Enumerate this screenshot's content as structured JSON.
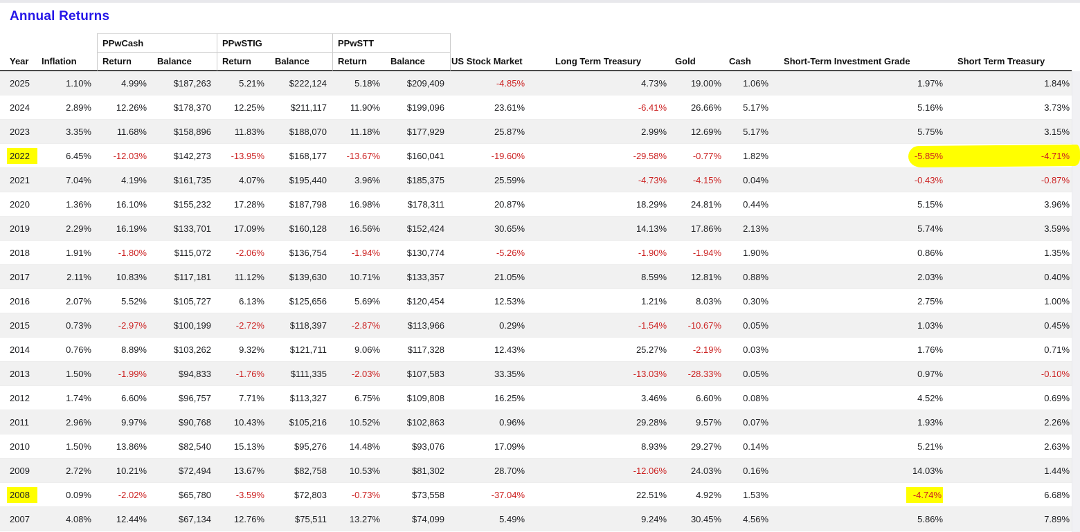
{
  "page": {
    "title": "Annual Returns"
  },
  "colors": {
    "title": "#2617e8",
    "negative": "#cc2222",
    "stripe": "#f1f1f1",
    "underline": "#4a4a4a",
    "grid_line": "#cccccc",
    "top_strip": "#e8e8ec",
    "scrollbar_track": "#f1f1f4",
    "highlighter": "#ffff00"
  },
  "table": {
    "group_headers": [
      {
        "label": "",
        "span": 2
      },
      {
        "label": "PPwCash",
        "span": 2
      },
      {
        "label": "PPwSTIG",
        "span": 2
      },
      {
        "label": "PPwSTT",
        "span": 2
      },
      {
        "label": "",
        "span": 6
      }
    ],
    "column_headers": [
      "Year",
      "Inflation",
      "Return",
      "Balance",
      "Return",
      "Balance",
      "Return",
      "Balance",
      "US Stock Market",
      "Long Term Treasury",
      "Gold",
      "Cash",
      "Short-Term Investment Grade",
      "Short Term Treasury"
    ],
    "column_keys": [
      "year",
      "inflation",
      "ppwcash_return",
      "ppwcash_balance",
      "ppwstig_return",
      "ppwstig_balance",
      "ppwstt_return",
      "ppwstt_balance",
      "us_stock_market",
      "long_term_treasury",
      "gold",
      "cash",
      "short_term_investment_grade",
      "short_term_treasury"
    ],
    "rows": [
      {
        "year": "2025",
        "inflation": "1.10%",
        "ppwcash_return": "4.99%",
        "ppwcash_balance": "$187,263",
        "ppwstig_return": "5.21%",
        "ppwstig_balance": "$222,124",
        "ppwstt_return": "5.18%",
        "ppwstt_balance": "$209,409",
        "us_stock_market": "-4.85%",
        "long_term_treasury": "4.73%",
        "gold": "19.00%",
        "cash": "1.06%",
        "short_term_investment_grade": "1.97%",
        "short_term_treasury": "1.84%"
      },
      {
        "year": "2024",
        "inflation": "2.89%",
        "ppwcash_return": "12.26%",
        "ppwcash_balance": "$178,370",
        "ppwstig_return": "12.25%",
        "ppwstig_balance": "$211,117",
        "ppwstt_return": "11.90%",
        "ppwstt_balance": "$199,096",
        "us_stock_market": "23.61%",
        "long_term_treasury": "-6.41%",
        "gold": "26.66%",
        "cash": "5.17%",
        "short_term_investment_grade": "5.16%",
        "short_term_treasury": "3.73%"
      },
      {
        "year": "2023",
        "inflation": "3.35%",
        "ppwcash_return": "11.68%",
        "ppwcash_balance": "$158,896",
        "ppwstig_return": "11.83%",
        "ppwstig_balance": "$188,070",
        "ppwstt_return": "11.18%",
        "ppwstt_balance": "$177,929",
        "us_stock_market": "25.87%",
        "long_term_treasury": "2.99%",
        "gold": "12.69%",
        "cash": "5.17%",
        "short_term_investment_grade": "5.75%",
        "short_term_treasury": "3.15%"
      },
      {
        "year": "2022",
        "inflation": "6.45%",
        "ppwcash_return": "-12.03%",
        "ppwcash_balance": "$142,273",
        "ppwstig_return": "-13.95%",
        "ppwstig_balance": "$168,177",
        "ppwstt_return": "-13.67%",
        "ppwstt_balance": "$160,041",
        "us_stock_market": "-19.60%",
        "long_term_treasury": "-29.58%",
        "gold": "-0.77%",
        "cash": "1.82%",
        "short_term_investment_grade": "-5.85%",
        "short_term_treasury": "-4.71%"
      },
      {
        "year": "2021",
        "inflation": "7.04%",
        "ppwcash_return": "4.19%",
        "ppwcash_balance": "$161,735",
        "ppwstig_return": "4.07%",
        "ppwstig_balance": "$195,440",
        "ppwstt_return": "3.96%",
        "ppwstt_balance": "$185,375",
        "us_stock_market": "25.59%",
        "long_term_treasury": "-4.73%",
        "gold": "-4.15%",
        "cash": "0.04%",
        "short_term_investment_grade": "-0.43%",
        "short_term_treasury": "-0.87%"
      },
      {
        "year": "2020",
        "inflation": "1.36%",
        "ppwcash_return": "16.10%",
        "ppwcash_balance": "$155,232",
        "ppwstig_return": "17.28%",
        "ppwstig_balance": "$187,798",
        "ppwstt_return": "16.98%",
        "ppwstt_balance": "$178,311",
        "us_stock_market": "20.87%",
        "long_term_treasury": "18.29%",
        "gold": "24.81%",
        "cash": "0.44%",
        "short_term_investment_grade": "5.15%",
        "short_term_treasury": "3.96%"
      },
      {
        "year": "2019",
        "inflation": "2.29%",
        "ppwcash_return": "16.19%",
        "ppwcash_balance": "$133,701",
        "ppwstig_return": "17.09%",
        "ppwstig_balance": "$160,128",
        "ppwstt_return": "16.56%",
        "ppwstt_balance": "$152,424",
        "us_stock_market": "30.65%",
        "long_term_treasury": "14.13%",
        "gold": "17.86%",
        "cash": "2.13%",
        "short_term_investment_grade": "5.74%",
        "short_term_treasury": "3.59%"
      },
      {
        "year": "2018",
        "inflation": "1.91%",
        "ppwcash_return": "-1.80%",
        "ppwcash_balance": "$115,072",
        "ppwstig_return": "-2.06%",
        "ppwstig_balance": "$136,754",
        "ppwstt_return": "-1.94%",
        "ppwstt_balance": "$130,774",
        "us_stock_market": "-5.26%",
        "long_term_treasury": "-1.90%",
        "gold": "-1.94%",
        "cash": "1.90%",
        "short_term_investment_grade": "0.86%",
        "short_term_treasury": "1.35%"
      },
      {
        "year": "2017",
        "inflation": "2.11%",
        "ppwcash_return": "10.83%",
        "ppwcash_balance": "$117,181",
        "ppwstig_return": "11.12%",
        "ppwstig_balance": "$139,630",
        "ppwstt_return": "10.71%",
        "ppwstt_balance": "$133,357",
        "us_stock_market": "21.05%",
        "long_term_treasury": "8.59%",
        "gold": "12.81%",
        "cash": "0.88%",
        "short_term_investment_grade": "2.03%",
        "short_term_treasury": "0.40%"
      },
      {
        "year": "2016",
        "inflation": "2.07%",
        "ppwcash_return": "5.52%",
        "ppwcash_balance": "$105,727",
        "ppwstig_return": "6.13%",
        "ppwstig_balance": "$125,656",
        "ppwstt_return": "5.69%",
        "ppwstt_balance": "$120,454",
        "us_stock_market": "12.53%",
        "long_term_treasury": "1.21%",
        "gold": "8.03%",
        "cash": "0.30%",
        "short_term_investment_grade": "2.75%",
        "short_term_treasury": "1.00%"
      },
      {
        "year": "2015",
        "inflation": "0.73%",
        "ppwcash_return": "-2.97%",
        "ppwcash_balance": "$100,199",
        "ppwstig_return": "-2.72%",
        "ppwstig_balance": "$118,397",
        "ppwstt_return": "-2.87%",
        "ppwstt_balance": "$113,966",
        "us_stock_market": "0.29%",
        "long_term_treasury": "-1.54%",
        "gold": "-10.67%",
        "cash": "0.05%",
        "short_term_investment_grade": "1.03%",
        "short_term_treasury": "0.45%"
      },
      {
        "year": "2014",
        "inflation": "0.76%",
        "ppwcash_return": "8.89%",
        "ppwcash_balance": "$103,262",
        "ppwstig_return": "9.32%",
        "ppwstig_balance": "$121,711",
        "ppwstt_return": "9.06%",
        "ppwstt_balance": "$117,328",
        "us_stock_market": "12.43%",
        "long_term_treasury": "25.27%",
        "gold": "-2.19%",
        "cash": "0.03%",
        "short_term_investment_grade": "1.76%",
        "short_term_treasury": "0.71%"
      },
      {
        "year": "2013",
        "inflation": "1.50%",
        "ppwcash_return": "-1.99%",
        "ppwcash_balance": "$94,833",
        "ppwstig_return": "-1.76%",
        "ppwstig_balance": "$111,335",
        "ppwstt_return": "-2.03%",
        "ppwstt_balance": "$107,583",
        "us_stock_market": "33.35%",
        "long_term_treasury": "-13.03%",
        "gold": "-28.33%",
        "cash": "0.05%",
        "short_term_investment_grade": "0.97%",
        "short_term_treasury": "-0.10%"
      },
      {
        "year": "2012",
        "inflation": "1.74%",
        "ppwcash_return": "6.60%",
        "ppwcash_balance": "$96,757",
        "ppwstig_return": "7.71%",
        "ppwstig_balance": "$113,327",
        "ppwstt_return": "6.75%",
        "ppwstt_balance": "$109,808",
        "us_stock_market": "16.25%",
        "long_term_treasury": "3.46%",
        "gold": "6.60%",
        "cash": "0.08%",
        "short_term_investment_grade": "4.52%",
        "short_term_treasury": "0.69%"
      },
      {
        "year": "2011",
        "inflation": "2.96%",
        "ppwcash_return": "9.97%",
        "ppwcash_balance": "$90,768",
        "ppwstig_return": "10.43%",
        "ppwstig_balance": "$105,216",
        "ppwstt_return": "10.52%",
        "ppwstt_balance": "$102,863",
        "us_stock_market": "0.96%",
        "long_term_treasury": "29.28%",
        "gold": "9.57%",
        "cash": "0.07%",
        "short_term_investment_grade": "1.93%",
        "short_term_treasury": "2.26%"
      },
      {
        "year": "2010",
        "inflation": "1.50%",
        "ppwcash_return": "13.86%",
        "ppwcash_balance": "$82,540",
        "ppwstig_return": "15.13%",
        "ppwstig_balance": "$95,276",
        "ppwstt_return": "14.48%",
        "ppwstt_balance": "$93,076",
        "us_stock_market": "17.09%",
        "long_term_treasury": "8.93%",
        "gold": "29.27%",
        "cash": "0.14%",
        "short_term_investment_grade": "5.21%",
        "short_term_treasury": "2.63%"
      },
      {
        "year": "2009",
        "inflation": "2.72%",
        "ppwcash_return": "10.21%",
        "ppwcash_balance": "$72,494",
        "ppwstig_return": "13.67%",
        "ppwstig_balance": "$82,758",
        "ppwstt_return": "10.53%",
        "ppwstt_balance": "$81,302",
        "us_stock_market": "28.70%",
        "long_term_treasury": "-12.06%",
        "gold": "24.03%",
        "cash": "0.16%",
        "short_term_investment_grade": "14.03%",
        "short_term_treasury": "1.44%"
      },
      {
        "year": "2008",
        "inflation": "0.09%",
        "ppwcash_return": "-2.02%",
        "ppwcash_balance": "$65,780",
        "ppwstig_return": "-3.59%",
        "ppwstig_balance": "$72,803",
        "ppwstt_return": "-0.73%",
        "ppwstt_balance": "$73,558",
        "us_stock_market": "-37.04%",
        "long_term_treasury": "22.51%",
        "gold": "4.92%",
        "cash": "1.53%",
        "short_term_investment_grade": "-4.74%",
        "short_term_treasury": "6.68%"
      },
      {
        "year": "2007",
        "inflation": "4.08%",
        "ppwcash_return": "12.44%",
        "ppwcash_balance": "$67,134",
        "ppwstig_return": "12.76%",
        "ppwstig_balance": "$75,511",
        "ppwstt_return": "13.27%",
        "ppwstt_balance": "$74,099",
        "us_stock_market": "5.49%",
        "long_term_treasury": "9.24%",
        "gold": "30.45%",
        "cash": "4.56%",
        "short_term_investment_grade": "5.86%",
        "short_term_treasury": "7.89%"
      }
    ]
  },
  "annotations": {
    "highlighter_color": "#ffff00",
    "marks": [
      {
        "type": "cell",
        "row": "2022",
        "column": "year"
      },
      {
        "type": "swipe",
        "row": "2022",
        "columns": [
          "short_term_investment_grade",
          "short_term_treasury"
        ]
      },
      {
        "type": "cell",
        "row": "2008",
        "column": "year"
      },
      {
        "type": "cell",
        "row": "2008",
        "column": "short_term_investment_grade"
      }
    ]
  }
}
